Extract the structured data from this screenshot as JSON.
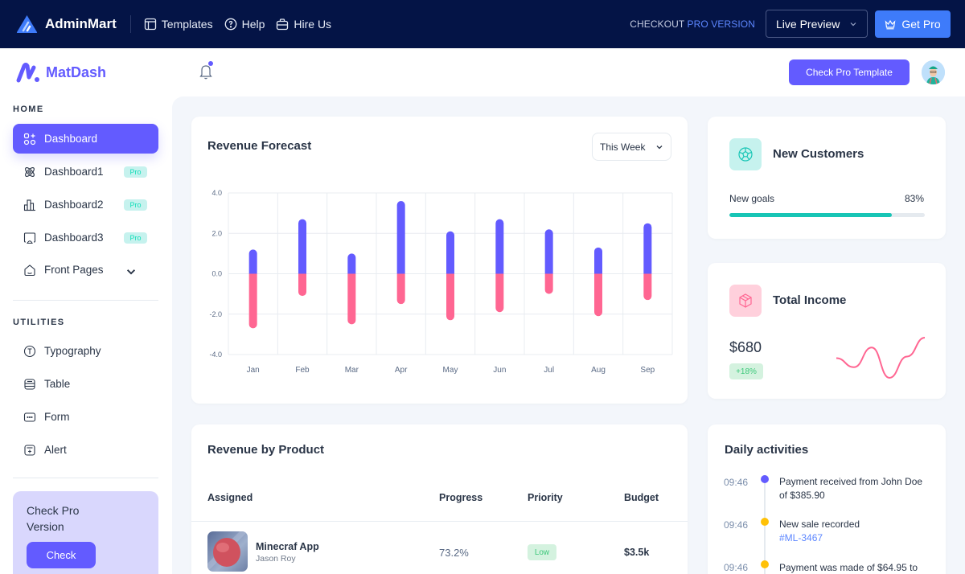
{
  "topbar": {
    "brand": "AdminMart",
    "links": [
      {
        "label": "Templates",
        "icon": "layout-icon"
      },
      {
        "label": "Help",
        "icon": "help-circle-icon"
      },
      {
        "label": "Hire Us",
        "icon": "briefcase-icon"
      }
    ],
    "checkout_prefix": "CHECKOUT",
    "checkout_suffix": "PRO VERSION",
    "live_preview": "Live Preview",
    "get_pro": "Get Pro"
  },
  "sidebar": {
    "brand": "MatDash",
    "sections": [
      {
        "title": "HOME",
        "items": [
          {
            "label": "Dashboard",
            "icon": "apps-icon",
            "active": true
          },
          {
            "label": "Dashboard1",
            "icon": "atom-icon",
            "badge": "Pro"
          },
          {
            "label": "Dashboard2",
            "icon": "chart-bar-icon",
            "badge": "Pro"
          },
          {
            "label": "Dashboard3",
            "icon": "screen-share-icon",
            "badge": "Pro"
          },
          {
            "label": "Front Pages",
            "icon": "home-icon",
            "expandable": true
          }
        ]
      },
      {
        "title": "UTILITIES",
        "items": [
          {
            "label": "Typography",
            "icon": "typography-icon"
          },
          {
            "label": "Table",
            "icon": "table-icon"
          },
          {
            "label": "Form",
            "icon": "form-icon"
          },
          {
            "label": "Alert",
            "icon": "alert-icon"
          }
        ]
      }
    ],
    "promo": {
      "title": "Check Pro Version",
      "button": "Check"
    }
  },
  "header": {
    "check_pro_template": "Check Pro Template",
    "notifications_unread": true
  },
  "revenue_forecast": {
    "title": "Revenue Forecast",
    "period_select": "This Week"
  },
  "chart_data": {
    "type": "bar",
    "title": "Revenue Forecast",
    "categories": [
      "Jan",
      "Feb",
      "Mar",
      "Apr",
      "May",
      "Jun",
      "Jul",
      "Aug",
      "Sep"
    ],
    "series": [
      {
        "name": "positive",
        "color": "#635bff",
        "values": [
          1.2,
          2.7,
          1.0,
          3.6,
          2.1,
          2.7,
          2.2,
          1.3,
          2.5
        ]
      },
      {
        "name": "negative",
        "color": "#ff6692",
        "values": [
          -2.7,
          -1.1,
          -2.5,
          -1.5,
          -2.3,
          -1.9,
          -1.0,
          -2.1,
          -1.3
        ]
      }
    ],
    "stacked": true,
    "yticks": [
      "4.0",
      "2.0",
      "0.0",
      "-2.0",
      "-4.0"
    ],
    "ylim": [
      -4,
      4
    ],
    "xlabel": "",
    "ylabel": "",
    "grid": true
  },
  "new_customers": {
    "title": "New Customers",
    "goal_label": "New goals",
    "goal_pct_label": "83%",
    "goal_progress": 0.83,
    "accent": "#17c5b5"
  },
  "total_income": {
    "title": "Total Income",
    "amount": "$680",
    "change": "+18%",
    "sparkline": [
      24,
      13,
      37,
      0,
      26,
      49
    ],
    "accent": "#ff6692"
  },
  "revenue_by_product": {
    "title": "Revenue by Product",
    "columns": [
      "Assigned",
      "Progress",
      "Priority",
      "Budget"
    ],
    "rows": [
      {
        "name": "Minecraf App",
        "assignee": "Jason Roy",
        "progress": "73.2%",
        "priority": "Low",
        "budget": "$3.5k"
      }
    ]
  },
  "daily_activities": {
    "title": "Daily activities",
    "items": [
      {
        "time": "09:46",
        "text": "Payment received from John Doe of $385.90",
        "link": "",
        "color": "#635bff"
      },
      {
        "time": "09:46",
        "text": "New sale recorded",
        "link": "#ML-3467",
        "color": "#ffc107"
      },
      {
        "time": "09:46",
        "text": "Payment was made of $64.95 to",
        "link": "",
        "color": "#ffc107"
      }
    ]
  }
}
